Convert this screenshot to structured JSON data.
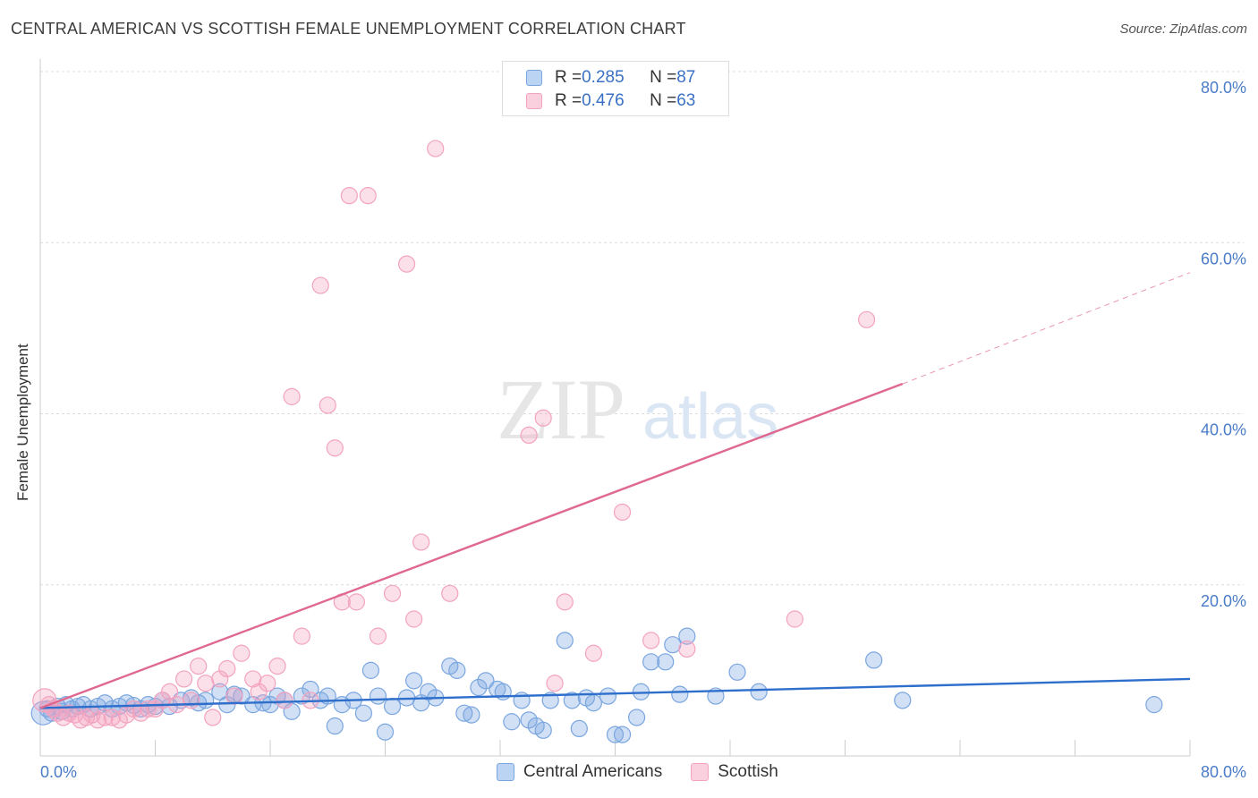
{
  "title": "CENTRAL AMERICAN VS SCOTTISH FEMALE UNEMPLOYMENT CORRELATION CHART",
  "source": "Source: ZipAtlas.com",
  "watermark": {
    "part1": "ZIP",
    "part2": "atlas"
  },
  "legend_top": [
    {
      "r_label": "R = ",
      "r_value": "0.285",
      "n_label": "N = ",
      "n_value": "87"
    },
    {
      "r_label": "R = ",
      "r_value": "0.476",
      "n_label": "N = ",
      "n_value": "63"
    }
  ],
  "chart_data": {
    "type": "scatter",
    "ylabel": "Female Unemployment",
    "xlim": [
      0,
      80
    ],
    "ylim": [
      0,
      80
    ],
    "x_tick_labels": [
      {
        "value": 0,
        "label": "0.0%"
      },
      {
        "value": 80,
        "label": "80.0%"
      }
    ],
    "y_tick_labels": [
      {
        "value": 20,
        "label": "20.0%"
      },
      {
        "value": 40,
        "label": "40.0%"
      },
      {
        "value": 60,
        "label": "60.0%"
      },
      {
        "value": 80,
        "label": "80.0%"
      }
    ],
    "grid": true,
    "legend_placement": "bottom",
    "series": [
      {
        "name": "Central Americans",
        "color": "#7aa6e0",
        "line_color": "#2e6fcc",
        "trend": {
          "x0": 0,
          "y0": 5.6,
          "x1": 80,
          "y1": 9.0
        },
        "points": [
          [
            0.2,
            5.0
          ],
          [
            0.5,
            5.5
          ],
          [
            0.8,
            5.0
          ],
          [
            1.2,
            5.8
          ],
          [
            1.5,
            5.2
          ],
          [
            1.8,
            6.0
          ],
          [
            2.2,
            5.5
          ],
          [
            2.6,
            5.8
          ],
          [
            3.0,
            6.0
          ],
          [
            3.5,
            5.5
          ],
          [
            4.0,
            5.8
          ],
          [
            4.5,
            6.2
          ],
          [
            5.0,
            5.5
          ],
          [
            5.5,
            5.8
          ],
          [
            6.0,
            6.2
          ],
          [
            6.5,
            5.9
          ],
          [
            7.0,
            5.5
          ],
          [
            7.5,
            6.0
          ],
          [
            8.0,
            5.8
          ],
          [
            8.5,
            6.5
          ],
          [
            9.0,
            5.8
          ],
          [
            9.8,
            6.5
          ],
          [
            10.5,
            6.8
          ],
          [
            11.0,
            6.2
          ],
          [
            11.5,
            6.5
          ],
          [
            12.5,
            7.5
          ],
          [
            13.0,
            6.0
          ],
          [
            13.5,
            7.2
          ],
          [
            14.0,
            7.0
          ],
          [
            14.8,
            6.0
          ],
          [
            15.5,
            6.2
          ],
          [
            16.0,
            6.0
          ],
          [
            16.5,
            7.0
          ],
          [
            17.0,
            6.5
          ],
          [
            17.5,
            5.2
          ],
          [
            18.2,
            7.0
          ],
          [
            18.8,
            7.8
          ],
          [
            19.5,
            6.5
          ],
          [
            20.0,
            7.0
          ],
          [
            20.5,
            3.5
          ],
          [
            21.0,
            6.0
          ],
          [
            21.8,
            6.5
          ],
          [
            22.5,
            5.0
          ],
          [
            23.0,
            10.0
          ],
          [
            23.5,
            7.0
          ],
          [
            24.0,
            2.8
          ],
          [
            24.5,
            5.8
          ],
          [
            25.5,
            6.8
          ],
          [
            26.0,
            8.8
          ],
          [
            26.5,
            6.2
          ],
          [
            27.0,
            7.5
          ],
          [
            27.5,
            6.8
          ],
          [
            28.5,
            10.5
          ],
          [
            29.0,
            10.0
          ],
          [
            29.5,
            5.0
          ],
          [
            30.0,
            4.8
          ],
          [
            30.5,
            8.0
          ],
          [
            31.0,
            8.8
          ],
          [
            31.8,
            7.8
          ],
          [
            32.2,
            7.5
          ],
          [
            32.8,
            4.0
          ],
          [
            33.5,
            6.5
          ],
          [
            34.0,
            4.2
          ],
          [
            34.5,
            3.5
          ],
          [
            35.0,
            3.0
          ],
          [
            35.5,
            6.5
          ],
          [
            36.5,
            13.5
          ],
          [
            37.0,
            6.5
          ],
          [
            37.5,
            3.2
          ],
          [
            38.0,
            6.8
          ],
          [
            38.5,
            6.2
          ],
          [
            39.5,
            7.0
          ],
          [
            40.0,
            2.5
          ],
          [
            40.5,
            2.5
          ],
          [
            41.5,
            4.5
          ],
          [
            41.8,
            7.5
          ],
          [
            42.5,
            11.0
          ],
          [
            43.5,
            11.0
          ],
          [
            44.0,
            13.0
          ],
          [
            44.5,
            7.2
          ],
          [
            45.0,
            14.0
          ],
          [
            47.0,
            7.0
          ],
          [
            48.5,
            9.8
          ],
          [
            50.0,
            7.5
          ],
          [
            58.0,
            11.2
          ],
          [
            60.0,
            6.5
          ],
          [
            77.5,
            6.0
          ]
        ]
      },
      {
        "name": "Scottish",
        "color": "#f3a3bf",
        "line_color": "#e06890",
        "trend": {
          "x0": 0,
          "y0": 5.6,
          "x1": 60,
          "y1": 43.5
        },
        "trend_dashed_to": {
          "x": 80,
          "y": 56.5
        },
        "points": [
          [
            0.3,
            6.5
          ],
          [
            0.6,
            6.0
          ],
          [
            0.9,
            5.5
          ],
          [
            1.2,
            5.0
          ],
          [
            1.6,
            4.5
          ],
          [
            2.0,
            5.0
          ],
          [
            2.4,
            4.8
          ],
          [
            2.8,
            4.2
          ],
          [
            3.2,
            4.5
          ],
          [
            3.6,
            4.8
          ],
          [
            4.0,
            4.2
          ],
          [
            4.5,
            4.5
          ],
          [
            5.0,
            4.5
          ],
          [
            5.5,
            4.2
          ],
          [
            6.0,
            4.8
          ],
          [
            6.5,
            5.5
          ],
          [
            7.0,
            5.0
          ],
          [
            7.5,
            5.5
          ],
          [
            8.0,
            5.5
          ],
          [
            8.5,
            6.5
          ],
          [
            9.0,
            7.5
          ],
          [
            9.5,
            6.0
          ],
          [
            10.0,
            9.0
          ],
          [
            10.5,
            6.5
          ],
          [
            11.0,
            10.5
          ],
          [
            11.5,
            8.5
          ],
          [
            12.0,
            4.5
          ],
          [
            12.5,
            9.0
          ],
          [
            13.0,
            10.2
          ],
          [
            13.5,
            7.0
          ],
          [
            14.0,
            12.0
          ],
          [
            14.8,
            9.0
          ],
          [
            15.2,
            7.5
          ],
          [
            15.8,
            8.5
          ],
          [
            16.5,
            10.5
          ],
          [
            17.0,
            6.5
          ],
          [
            17.5,
            42.0
          ],
          [
            18.2,
            14.0
          ],
          [
            18.8,
            6.5
          ],
          [
            19.5,
            55.0
          ],
          [
            20.0,
            41.0
          ],
          [
            20.5,
            36.0
          ],
          [
            21.0,
            18.0
          ],
          [
            21.5,
            65.5
          ],
          [
            22.0,
            18.0
          ],
          [
            22.8,
            65.5
          ],
          [
            23.5,
            14.0
          ],
          [
            24.5,
            19.0
          ],
          [
            25.5,
            57.5
          ],
          [
            26.0,
            16.0
          ],
          [
            26.5,
            25.0
          ],
          [
            27.5,
            71.0
          ],
          [
            28.5,
            19.0
          ],
          [
            34.0,
            37.5
          ],
          [
            35.0,
            39.5
          ],
          [
            35.8,
            8.5
          ],
          [
            36.5,
            18.0
          ],
          [
            38.5,
            12.0
          ],
          [
            40.5,
            28.5
          ],
          [
            42.5,
            13.5
          ],
          [
            45.0,
            12.5
          ],
          [
            52.5,
            16.0
          ],
          [
            57.5,
            51.0
          ]
        ]
      }
    ]
  }
}
